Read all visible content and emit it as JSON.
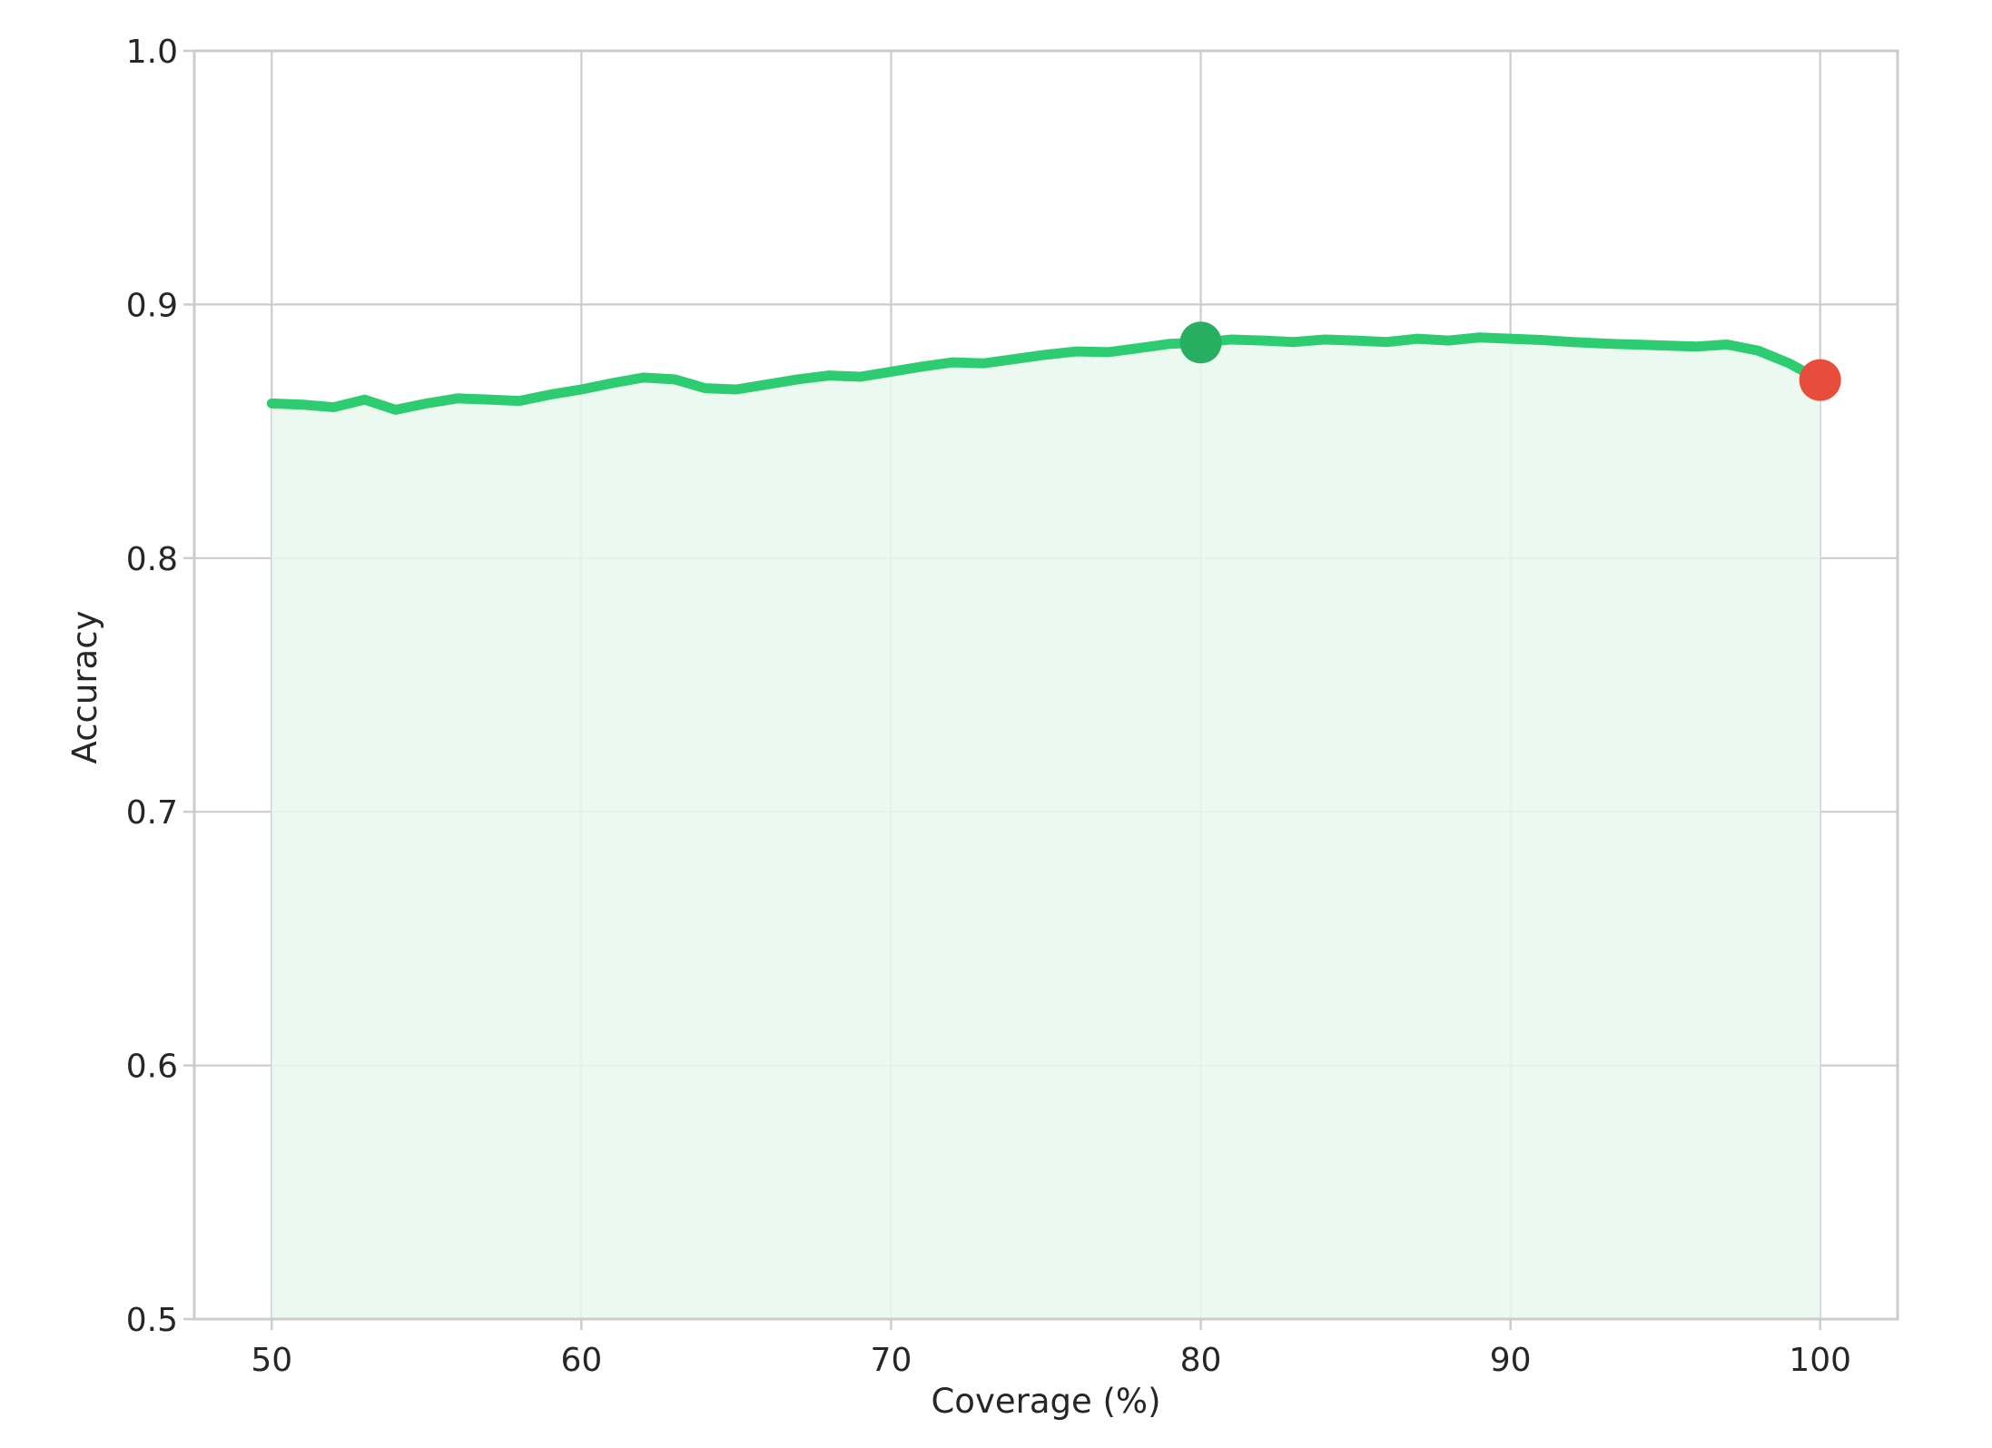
{
  "chart_data": {
    "type": "line",
    "title": "",
    "xlabel": "Coverage (%)",
    "ylabel": "Accuracy",
    "xlim": [
      47.5,
      102.5
    ],
    "ylim": [
      0.5,
      1.0
    ],
    "grid": true,
    "x_ticks": [
      50,
      60,
      70,
      80,
      90,
      100
    ],
    "x_tick_labels": [
      "50",
      "60",
      "70",
      "80",
      "90",
      "100"
    ],
    "y_ticks": [
      0.5,
      0.6,
      0.7,
      0.8,
      0.9,
      1.0
    ],
    "y_tick_labels": [
      "0.5",
      "0.6",
      "0.7",
      "0.8",
      "0.9",
      "1.0"
    ],
    "series": [
      {
        "x": [
          50,
          51,
          52,
          53,
          54,
          55,
          56,
          57,
          58,
          59,
          60,
          61,
          62,
          63,
          64,
          65,
          66,
          67,
          68,
          69,
          70,
          71,
          72,
          73,
          74,
          75,
          76,
          77,
          78,
          79,
          80,
          81,
          82,
          83,
          84,
          85,
          86,
          87,
          88,
          89,
          90,
          91,
          92,
          93,
          94,
          95,
          96,
          97,
          98,
          99,
          100
        ],
        "values": [
          0.861,
          0.8605,
          0.8595,
          0.8625,
          0.8585,
          0.861,
          0.863,
          0.8625,
          0.862,
          0.8645,
          0.8665,
          0.869,
          0.8712,
          0.8705,
          0.867,
          0.8665,
          0.8685,
          0.8705,
          0.872,
          0.8715,
          0.8735,
          0.8755,
          0.8772,
          0.8768,
          0.8785,
          0.8802,
          0.8815,
          0.8812,
          0.8828,
          0.8845,
          0.885,
          0.8862,
          0.8858,
          0.8852,
          0.8862,
          0.8858,
          0.8852,
          0.8865,
          0.8858,
          0.887,
          0.8865,
          0.886,
          0.8852,
          0.8846,
          0.8842,
          0.8838,
          0.8834,
          0.8842,
          0.8818,
          0.8768,
          0.8702
        ],
        "color": "#2ecc71",
        "fill_color": "#e8f8ef"
      }
    ],
    "markers": [
      {
        "x": 80,
        "y": 0.885,
        "color": "#27ae60"
      },
      {
        "x": 100,
        "y": 0.8702,
        "color": "#e74c3c"
      }
    ]
  }
}
